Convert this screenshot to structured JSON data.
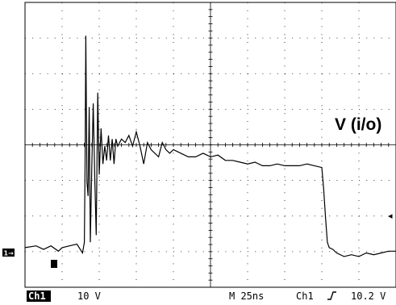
{
  "chart_data": {
    "type": "line",
    "title": "",
    "xlabel": "",
    "ylabel": "",
    "annotation": "V (i/o)",
    "grid": true,
    "grid_divisions": {
      "x": 10,
      "y": 8
    },
    "series": [
      {
        "t_div": [
          0.0,
          0.3,
          0.5,
          0.7,
          0.9,
          1.0,
          1.2,
          1.4,
          1.55,
          1.6,
          1.62,
          1.64,
          1.67,
          1.7,
          1.73,
          1.76,
          1.8,
          1.84,
          1.88,
          1.92,
          1.96,
          2.0,
          2.05,
          2.1,
          2.15,
          2.2,
          2.25,
          2.3,
          2.35,
          2.4,
          2.45,
          2.5,
          2.6,
          2.7,
          2.8,
          2.9,
          3.0,
          3.1,
          3.2,
          3.3,
          3.4,
          3.5,
          3.6,
          3.7,
          3.8,
          3.9,
          4.0,
          4.2,
          4.4,
          4.6,
          4.8,
          5.0,
          5.2,
          5.4,
          5.6,
          5.8,
          6.0,
          6.2,
          6.4,
          6.6,
          6.8,
          7.0,
          7.2,
          7.4,
          7.6,
          7.8,
          8.0,
          8.05,
          8.1,
          8.15,
          8.2,
          8.3,
          8.4,
          8.6,
          8.8,
          9.0,
          9.2,
          9.4,
          9.6,
          9.8,
          10.0
        ],
        "v_div": [
          0.15,
          0.2,
          0.1,
          0.2,
          0.05,
          0.15,
          0.2,
          0.25,
          0.0,
          0.3,
          2.5,
          6.1,
          2.0,
          1.6,
          4.1,
          0.3,
          2.4,
          4.2,
          2.1,
          0.5,
          4.5,
          2.2,
          3.5,
          2.5,
          3.0,
          2.6,
          3.3,
          2.6,
          3.2,
          2.5,
          3.2,
          3.0,
          3.2,
          3.1,
          3.3,
          3.0,
          3.4,
          3.0,
          2.5,
          3.1,
          2.9,
          2.8,
          2.7,
          3.1,
          2.9,
          2.8,
          2.9,
          2.8,
          2.7,
          2.7,
          2.8,
          2.7,
          2.75,
          2.6,
          2.6,
          2.55,
          2.5,
          2.55,
          2.45,
          2.45,
          2.5,
          2.45,
          2.45,
          2.45,
          2.5,
          2.45,
          2.4,
          1.8,
          1.0,
          0.3,
          0.15,
          0.1,
          0.0,
          -0.1,
          -0.05,
          -0.1,
          0.0,
          -0.05,
          0.0,
          0.05,
          0.05
        ]
      }
    ]
  },
  "status_bar": {
    "channel": "Ch1",
    "volts_per_div": "10 V",
    "timebase": "M  25ns",
    "trigger_source": "Ch1",
    "trigger_slope": "†",
    "trigger_level": "10.2 V"
  },
  "markers": {
    "ground_ref": "1→",
    "trigger_level_arrow": "◂"
  },
  "colors": {
    "trace": "#000000",
    "grid": "#000000",
    "background": "#ffffff"
  }
}
